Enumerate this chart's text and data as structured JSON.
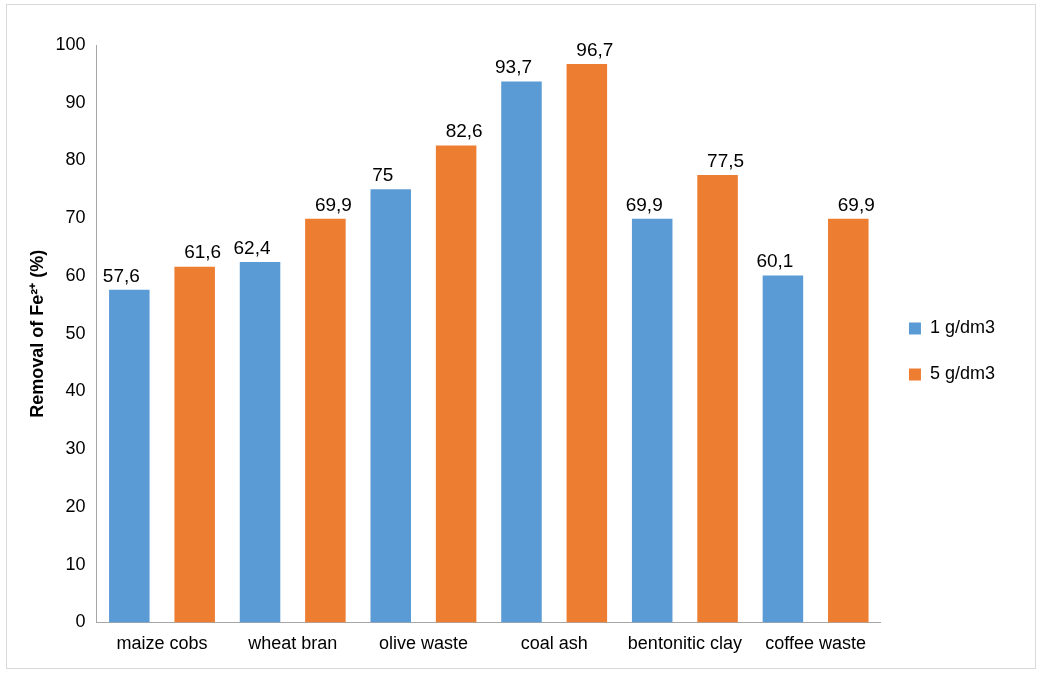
{
  "chart_data": {
    "type": "bar",
    "ylabel": "Removal of Fe²⁺ (%)",
    "categories": [
      "maize cobs",
      "wheat bran",
      "olive waste",
      "coal ash",
      "bentonitic clay",
      "coffee waste"
    ],
    "series": [
      {
        "name": "1 g/dm3",
        "color": "#5b9bd5",
        "values": [
          57.6,
          62.4,
          75,
          93.7,
          69.9,
          60.1
        ],
        "value_labels": [
          "57,6",
          "62,4",
          "75",
          "93,7",
          "69,9",
          "60,1"
        ]
      },
      {
        "name": "5 g/dm3",
        "color": "#ed7d31",
        "values": [
          61.6,
          69.9,
          82.6,
          96.7,
          77.5,
          69.9
        ],
        "value_labels": [
          "61,6",
          "69,9",
          "82,6",
          "96,7",
          "77,5",
          "69,9"
        ]
      }
    ],
    "ylim": [
      0,
      100
    ],
    "yticks": [
      0,
      10,
      20,
      30,
      40,
      50,
      60,
      70,
      80,
      90,
      100
    ],
    "grid": false,
    "legend": "right"
  }
}
